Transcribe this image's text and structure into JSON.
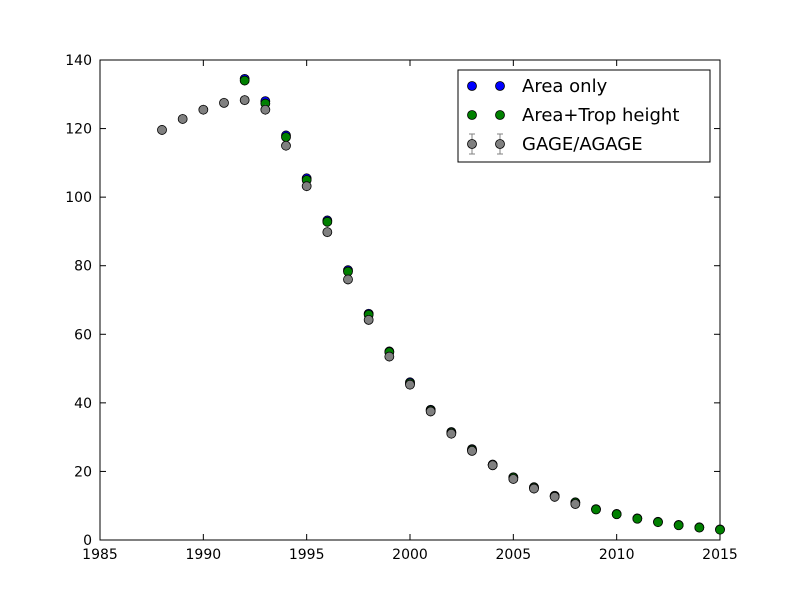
{
  "chart_data": {
    "type": "scatter",
    "title": "",
    "xlabel": "",
    "ylabel": "",
    "xlim": [
      1985,
      2015
    ],
    "ylim": [
      0,
      140
    ],
    "xticks": [
      "1985",
      "1990",
      "1995",
      "2000",
      "2005",
      "2010",
      "2015"
    ],
    "yticks": [
      "0",
      "20",
      "40",
      "60",
      "80",
      "100",
      "120",
      "140"
    ],
    "grid": false,
    "legend_position": "top-right",
    "series": [
      {
        "name": "Area only",
        "color": "#0000ff",
        "x": [
          1992,
          1993,
          1994,
          1995,
          1996,
          1997,
          1998,
          1999,
          2000,
          2001,
          2002,
          2003,
          2004,
          2005,
          2006,
          2007,
          2008,
          2009,
          2010,
          2011,
          2012,
          2013,
          2014,
          2015
        ],
        "y": [
          134.5,
          128.0,
          118.0,
          105.5,
          93.2,
          78.7,
          66.0,
          55.0,
          46.0,
          38.0,
          31.5,
          26.5,
          22.0,
          18.3,
          15.4,
          12.9,
          11.0,
          9.0,
          7.6,
          6.3,
          5.3,
          4.4,
          3.7,
          3.1
        ]
      },
      {
        "name": "Area+Trop height",
        "color": "#008000",
        "x": [
          1992,
          1993,
          1994,
          1995,
          1996,
          1997,
          1998,
          1999,
          2000,
          2001,
          2002,
          2003,
          2004,
          2005,
          2006,
          2007,
          2008,
          2009,
          2010,
          2011,
          2012,
          2013,
          2014,
          2015
        ],
        "y": [
          134.0,
          127.3,
          117.5,
          105.0,
          92.8,
          78.3,
          65.7,
          54.8,
          45.7,
          37.8,
          31.3,
          26.3,
          21.9,
          18.2,
          15.3,
          12.8,
          10.9,
          8.9,
          7.5,
          6.2,
          5.2,
          4.3,
          3.6,
          3.0
        ]
      },
      {
        "name": "GAGE/AGAGE",
        "color": "#808080",
        "error_bars": true,
        "x": [
          1988,
          1989,
          1990,
          1991,
          1992,
          1993,
          1994,
          1995,
          1996,
          1997,
          1998,
          1999,
          2000,
          2001,
          2002,
          2003,
          2004,
          2005,
          2006,
          2007,
          2008
        ],
        "y": [
          119.6,
          122.8,
          125.5,
          127.5,
          128.3,
          125.5,
          115.0,
          103.2,
          89.8,
          76.0,
          64.2,
          53.5,
          45.3,
          37.5,
          31.0,
          26.0,
          21.8,
          17.8,
          15.0,
          12.6,
          10.5
        ]
      }
    ]
  }
}
